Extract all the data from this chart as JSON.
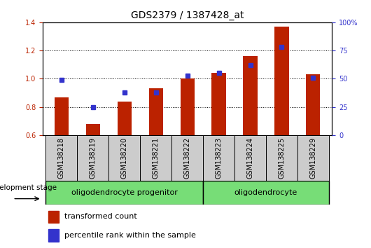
{
  "title": "GDS2379 / 1387428_at",
  "samples": [
    "GSM138218",
    "GSM138219",
    "GSM138220",
    "GSM138221",
    "GSM138222",
    "GSM138223",
    "GSM138224",
    "GSM138225",
    "GSM138229"
  ],
  "transformed_count": [
    0.87,
    0.68,
    0.84,
    0.93,
    1.0,
    1.04,
    1.16,
    1.37,
    1.03
  ],
  "percentile_rank": [
    49,
    25,
    38,
    38,
    53,
    55,
    62,
    78,
    51
  ],
  "ylim_left": [
    0.6,
    1.4
  ],
  "ylim_right": [
    0,
    100
  ],
  "yticks_left": [
    0.6,
    0.8,
    1.0,
    1.2,
    1.4
  ],
  "yticks_right": [
    0,
    25,
    50,
    75,
    100
  ],
  "ytick_right_labels": [
    "0",
    "25",
    "50",
    "75",
    "100%"
  ],
  "bar_color": "#bb2200",
  "dot_color": "#3333cc",
  "plot_bg": "#ffffff",
  "tick_bg": "#cccccc",
  "group1_label": "oligodendrocyte progenitor",
  "group2_label": "oligodendrocyte",
  "group1_indices": [
    0,
    1,
    2,
    3,
    4
  ],
  "group2_indices": [
    5,
    6,
    7,
    8
  ],
  "group_color": "#77dd77",
  "dev_stage_label": "development stage",
  "legend1_label": "transformed count",
  "legend2_label": "percentile rank within the sample",
  "title_fontsize": 10,
  "tick_label_fontsize": 7,
  "group_fontsize": 8,
  "legend_fontsize": 8,
  "dev_fontsize": 7.5
}
